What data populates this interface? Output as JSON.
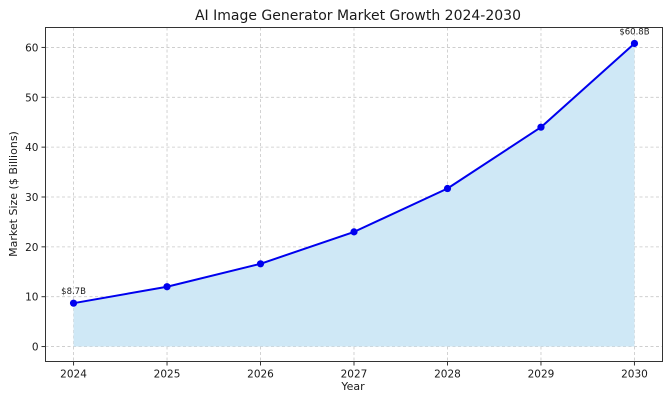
{
  "chart_data": {
    "type": "line",
    "title": "AI Image Generator Market Growth 2024-2030",
    "xlabel": "Year",
    "ylabel": "Market Size ($ Billions)",
    "categories": [
      "2024",
      "2025",
      "2026",
      "2027",
      "2028",
      "2029",
      "2030"
    ],
    "x": [
      2024,
      2025,
      2026,
      2027,
      2028,
      2029,
      2030
    ],
    "series": [
      {
        "name": "Market Size",
        "values": [
          8.7,
          12.0,
          16.6,
          23.0,
          31.7,
          44.0,
          60.8
        ],
        "color": "#0000ee",
        "marker": "circle",
        "fill": "#cfe8f6"
      }
    ],
    "annotations": [
      {
        "x": 2024,
        "y": 8.7,
        "text": "$8.7B"
      },
      {
        "x": 2030,
        "y": 60.8,
        "text": "$60.8B"
      }
    ],
    "yticks": [
      0,
      10,
      20,
      30,
      40,
      50,
      60
    ],
    "xticks": [
      "2024",
      "2025",
      "2026",
      "2027",
      "2028",
      "2029",
      "2030"
    ],
    "ylim": [
      -3,
      64
    ],
    "xlim": [
      2023.7,
      2030.3
    ],
    "grid": true,
    "legend": null,
    "colors": {
      "line": "#0000ee",
      "fill": "#cfe8f6",
      "grid": "#c8c8c8",
      "frame": "#333333"
    }
  }
}
